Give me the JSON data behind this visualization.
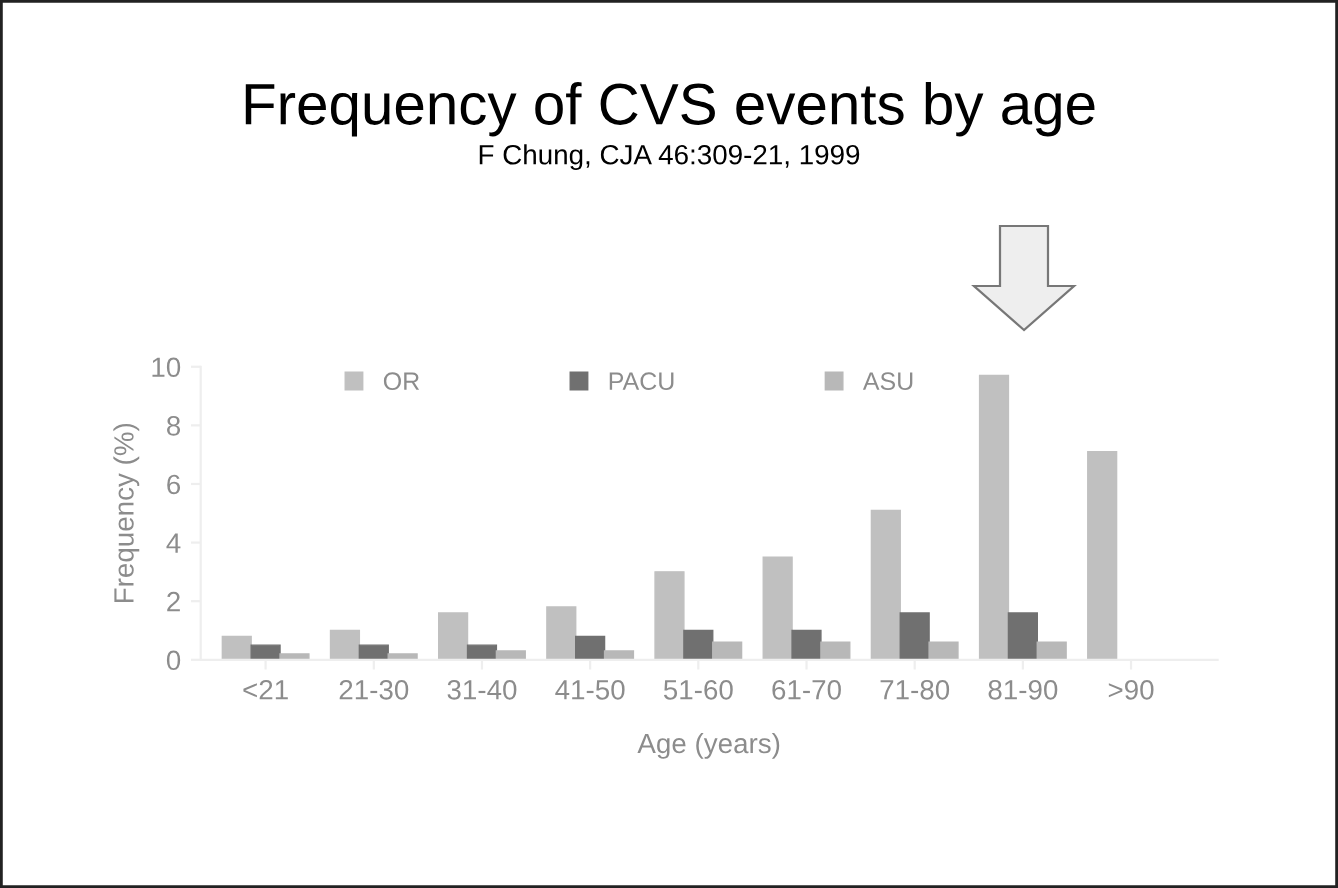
{
  "chart_data": {
    "type": "bar",
    "title": "Frequency of CVS events by age",
    "subtitle": "F Chung, CJA 46:309-21, 1999",
    "xlabel": "Age (years)",
    "ylabel": "Frequency (%)",
    "categories": [
      "<21",
      "21-30",
      "31-40",
      "41-50",
      "51-60",
      "61-70",
      "71-80",
      "81-90",
      ">90"
    ],
    "series": [
      {
        "name": "OR",
        "color": "#c0c0c0",
        "values": [
          0.8,
          1.0,
          1.6,
          1.8,
          3.0,
          3.5,
          5.1,
          9.7,
          7.1
        ]
      },
      {
        "name": "PACU",
        "color": "#707070",
        "values": [
          0.5,
          0.5,
          0.5,
          0.8,
          1.0,
          1.0,
          1.6,
          1.6,
          0
        ]
      },
      {
        "name": "ASU",
        "color": "#b8b8b8",
        "values": [
          0.2,
          0.2,
          0.3,
          0.3,
          0.6,
          0.6,
          0.6,
          0.6,
          0
        ]
      }
    ],
    "ylim": [
      0,
      10
    ],
    "yticks": [
      0,
      2,
      4,
      6,
      8,
      10
    ],
    "grid": false,
    "legend": "top"
  }
}
